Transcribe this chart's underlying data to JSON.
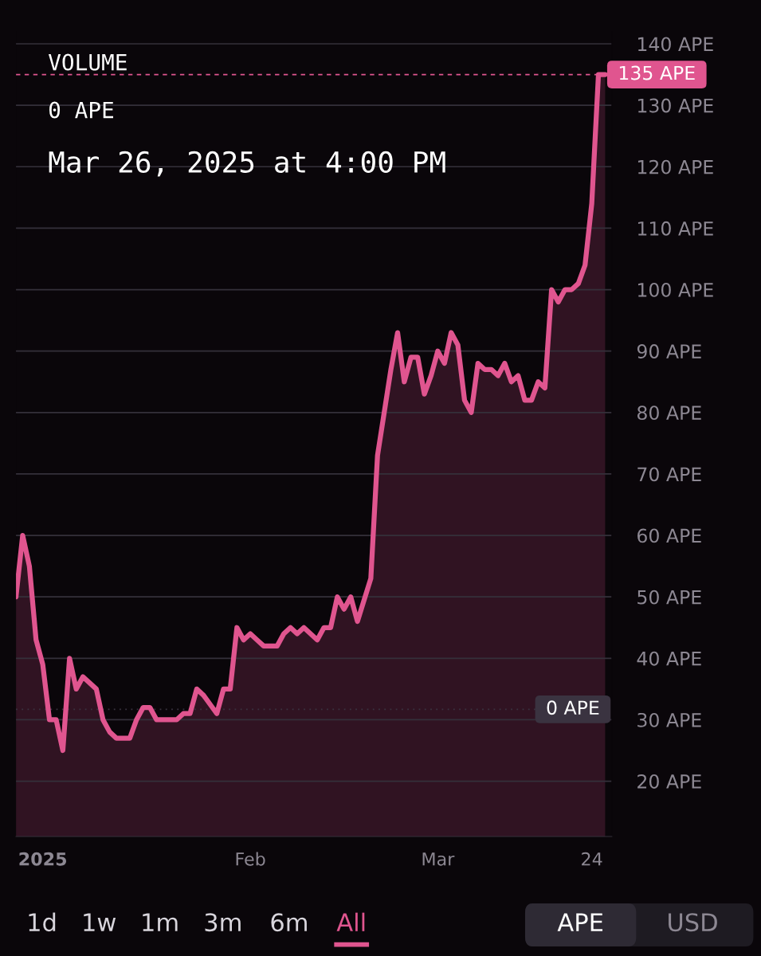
{
  "chart_data": {
    "type": "area",
    "color": "#e0558f",
    "x": [
      "2024-12-28",
      "2024-12-29",
      "2024-12-30",
      "2024-12-31",
      "2025-01-01",
      "2025-01-02",
      "2025-01-03",
      "2025-01-04",
      "2025-01-05",
      "2025-01-06",
      "2025-01-07",
      "2025-01-09",
      "2025-01-10",
      "2025-01-11",
      "2025-01-12",
      "2025-01-14",
      "2025-01-15",
      "2025-01-16",
      "2025-01-17",
      "2025-01-18",
      "2025-01-21",
      "2025-01-22",
      "2025-01-23",
      "2025-01-24",
      "2025-01-25",
      "2025-01-27",
      "2025-01-28",
      "2025-01-29",
      "2025-01-30",
      "2025-01-31",
      "2025-02-01",
      "2025-02-02",
      "2025-02-03",
      "2025-02-05",
      "2025-02-06",
      "2025-02-07",
      "2025-02-08",
      "2025-02-09",
      "2025-02-11",
      "2025-02-12",
      "2025-02-13",
      "2025-02-14",
      "2025-02-15",
      "2025-02-16",
      "2025-02-17",
      "2025-02-19",
      "2025-02-20",
      "2025-02-22",
      "2025-02-23",
      "2025-02-24",
      "2025-02-25",
      "2025-02-26",
      "2025-02-27",
      "2025-02-28",
      "2025-03-01",
      "2025-03-02",
      "2025-03-03",
      "2025-03-04",
      "2025-03-05",
      "2025-03-06",
      "2025-03-07",
      "2025-03-08",
      "2025-03-09",
      "2025-03-10",
      "2025-03-11",
      "2025-03-12",
      "2025-03-13",
      "2025-03-14",
      "2025-03-15",
      "2025-03-16",
      "2025-03-17",
      "2025-03-18",
      "2025-03-19",
      "2025-03-20",
      "2025-03-21",
      "2025-03-22",
      "2025-03-23",
      "2025-03-24",
      "2025-03-25",
      "2025-03-26"
    ],
    "values": [
      50,
      60,
      55,
      43,
      39,
      30,
      30,
      25,
      40,
      35,
      37,
      35,
      30,
      28,
      27,
      27,
      30,
      32,
      32,
      30,
      30,
      31,
      31,
      35,
      34,
      31,
      35,
      35,
      45,
      43,
      44,
      43,
      42,
      42,
      44,
      45,
      44,
      45,
      43,
      45,
      45,
      50,
      48,
      50,
      46,
      53,
      73,
      87,
      93,
      85,
      89,
      89,
      83,
      86,
      90,
      88,
      93,
      91,
      82,
      80,
      88,
      87,
      87,
      86,
      88,
      85,
      86,
      82,
      82,
      85,
      84,
      100,
      98,
      100,
      100,
      101,
      104,
      114,
      135,
      135
    ],
    "ylim": [
      11,
      142
    ],
    "yticks": [
      {
        "value": 20,
        "label": "20 APE"
      },
      {
        "value": 30,
        "label": "30 APE"
      },
      {
        "value": 40,
        "label": "40 APE"
      },
      {
        "value": 50,
        "label": "50 APE"
      },
      {
        "value": 60,
        "label": "60 APE"
      },
      {
        "value": 70,
        "label": "70 APE"
      },
      {
        "value": 80,
        "label": "80 APE"
      },
      {
        "value": 90,
        "label": "90 APE"
      },
      {
        "value": 100,
        "label": "100 APE"
      },
      {
        "value": 110,
        "label": "110 APE"
      },
      {
        "value": 120,
        "label": "120 APE"
      },
      {
        "value": 130,
        "label": "130 APE"
      },
      {
        "value": 140,
        "label": "140 APE"
      }
    ],
    "xlim": [
      "2024-12-28",
      "2025-03-27"
    ],
    "xticks": [
      {
        "value": "2025-01-01",
        "label": "2025"
      },
      {
        "value": "2025-02-01",
        "label": "Feb"
      },
      {
        "value": "2025-03-01",
        "label": "Mar"
      },
      {
        "value": "2025-03-24",
        "label": "24"
      }
    ],
    "grid": "y",
    "ref_lines": [
      {
        "axis": "y",
        "value": 135,
        "label": "135 APE",
        "color": "#e0558f",
        "line_style": "dashed"
      },
      {
        "axis": "y",
        "value": 31.7,
        "label": "0 APE",
        "color": "#3a3340",
        "line_style": "dotted"
      }
    ],
    "annotations": [
      "VOLUME",
      "0 APE",
      "Mar 26, 2025 at 4:00 PM",
      "1d",
      "1w",
      "1m",
      "3m",
      "6m",
      "All",
      "APE",
      "USD"
    ]
  }
}
